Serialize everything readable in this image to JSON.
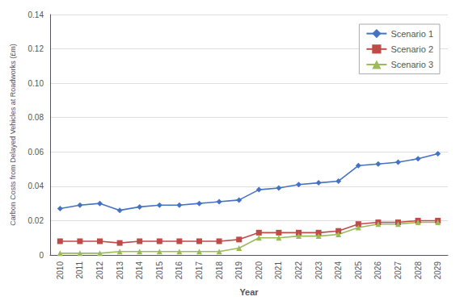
{
  "chart_data": {
    "type": "line",
    "xlabel": "Year",
    "ylabel": "Carbon Costs from Delayed Vehicles at Roadworks (£m)",
    "categories": [
      "2010",
      "2011",
      "2012",
      "2013",
      "2014",
      "2015",
      "2016",
      "2017",
      "2018",
      "2019",
      "2020",
      "2021",
      "2022",
      "2023",
      "2024",
      "2025",
      "2026",
      "2027",
      "2028",
      "2029"
    ],
    "series": [
      {
        "name": "Scenario 1",
        "color": "#4472C4",
        "marker": "diamond",
        "values": [
          0.027,
          0.029,
          0.03,
          0.026,
          0.028,
          0.029,
          0.029,
          0.03,
          0.031,
          0.032,
          0.038,
          0.039,
          0.041,
          0.042,
          0.043,
          0.052,
          0.053,
          0.054,
          0.056,
          0.059
        ]
      },
      {
        "name": "Scenario 2",
        "color": "#BE4B48",
        "marker": "square",
        "values": [
          0.008,
          0.008,
          0.008,
          0.007,
          0.008,
          0.008,
          0.008,
          0.008,
          0.008,
          0.009,
          0.013,
          0.013,
          0.013,
          0.013,
          0.014,
          0.018,
          0.019,
          0.019,
          0.02,
          0.02
        ]
      },
      {
        "name": "Scenario 3",
        "color": "#9BBB59",
        "marker": "triangle",
        "values": [
          0.001,
          0.001,
          0.001,
          0.002,
          0.002,
          0.002,
          0.002,
          0.002,
          0.002,
          0.004,
          0.01,
          0.01,
          0.011,
          0.011,
          0.012,
          0.016,
          0.018,
          0.018,
          0.019,
          0.019
        ]
      }
    ],
    "ylim": [
      0,
      0.14
    ],
    "yticks": [
      0,
      0.02,
      0.04,
      0.06,
      0.08,
      {
        "value": 0.1,
        "label": "0.10"
      },
      0.12,
      0.14
    ],
    "grid": true,
    "legend": "upper right"
  }
}
